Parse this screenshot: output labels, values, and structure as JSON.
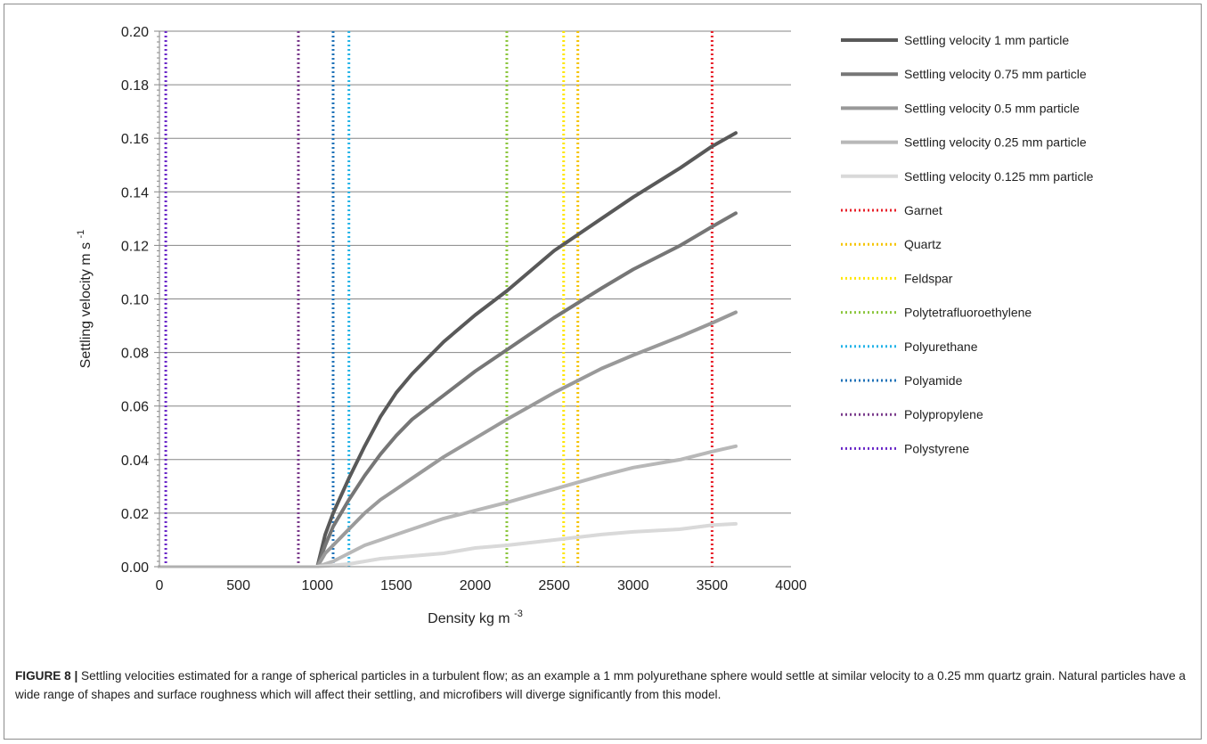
{
  "chart_data": {
    "type": "line",
    "xlabel": "Density kg m",
    "xlabel_sup": "-3",
    "ylabel": "Settling velocity m s",
    "ylabel_sup": "-1",
    "xlim": [
      0,
      4000
    ],
    "ylim": [
      0,
      0.2
    ],
    "x_ticks": [
      "0",
      "500",
      "1000",
      "1500",
      "2000",
      "2500",
      "3000",
      "3500",
      "4000"
    ],
    "y_ticks": [
      "0.00",
      "0.02",
      "0.04",
      "0.06",
      "0.08",
      "0.10",
      "0.12",
      "0.14",
      "0.16",
      "0.18",
      "0.20"
    ],
    "grid": "horizontal",
    "legend_position": "right",
    "series": [
      {
        "name": "Settling velocity 1 mm particle",
        "color": "#595959",
        "x": [
          0,
          1000,
          1050,
          1100,
          1200,
          1300,
          1400,
          1500,
          1600,
          1800,
          2000,
          2200,
          2500,
          2800,
          3000,
          3300,
          3500,
          3650
        ],
        "y": [
          0,
          0,
          0.012,
          0.02,
          0.033,
          0.045,
          0.056,
          0.065,
          0.072,
          0.084,
          0.094,
          0.103,
          0.118,
          0.13,
          0.138,
          0.149,
          0.157,
          0.162
        ]
      },
      {
        "name": "Settling velocity 0.75 mm particle",
        "color": "#767676",
        "x": [
          0,
          1000,
          1050,
          1100,
          1200,
          1300,
          1400,
          1500,
          1600,
          1800,
          2000,
          2200,
          2500,
          2800,
          3000,
          3300,
          3500,
          3650
        ],
        "y": [
          0,
          0,
          0.008,
          0.015,
          0.025,
          0.034,
          0.042,
          0.049,
          0.055,
          0.064,
          0.073,
          0.081,
          0.093,
          0.104,
          0.111,
          0.12,
          0.127,
          0.132
        ]
      },
      {
        "name": "Settling velocity 0.5 mm particle",
        "color": "#999999",
        "x": [
          0,
          1000,
          1050,
          1100,
          1200,
          1300,
          1400,
          1500,
          1600,
          1800,
          2000,
          2200,
          2500,
          2800,
          3000,
          3300,
          3500,
          3650
        ],
        "y": [
          0,
          0,
          0.005,
          0.008,
          0.014,
          0.02,
          0.025,
          0.029,
          0.033,
          0.041,
          0.048,
          0.055,
          0.065,
          0.074,
          0.079,
          0.086,
          0.091,
          0.095
        ]
      },
      {
        "name": "Settling velocity 0.25 mm particle",
        "color": "#b8b8b8",
        "x": [
          0,
          1000,
          1050,
          1100,
          1200,
          1300,
          1400,
          1500,
          1600,
          1800,
          2000,
          2200,
          2500,
          2800,
          3000,
          3300,
          3500,
          3650
        ],
        "y": [
          0,
          0,
          0.001,
          0.002,
          0.005,
          0.008,
          0.01,
          0.012,
          0.014,
          0.018,
          0.021,
          0.024,
          0.029,
          0.034,
          0.037,
          0.04,
          0.043,
          0.045
        ]
      },
      {
        "name": "Settling velocity 0.125 mm particle",
        "color": "#d9d9d9",
        "x": [
          0,
          1000,
          1100,
          1200,
          1400,
          1600,
          1800,
          2000,
          2200,
          2500,
          2800,
          3000,
          3300,
          3500,
          3650
        ],
        "y": [
          0,
          0,
          0.0005,
          0.001,
          0.003,
          0.004,
          0.005,
          0.007,
          0.008,
          0.01,
          0.012,
          0.013,
          0.014,
          0.0155,
          0.016
        ]
      }
    ],
    "reference_lines": [
      {
        "name": "Garnet",
        "x": 3500,
        "color": "#e8202a"
      },
      {
        "name": "Quartz",
        "x": 2650,
        "color": "#f5c400"
      },
      {
        "name": "Feldspar",
        "x": 2560,
        "color": "#ffe600"
      },
      {
        "name": "Polytetrafluoroethylene",
        "x": 2200,
        "color": "#8cc63e"
      },
      {
        "name": "Polyurethane",
        "x": 1200,
        "color": "#23b4e8"
      },
      {
        "name": "Polyamide",
        "x": 1100,
        "color": "#1f72b8"
      },
      {
        "name": "Polypropylene",
        "x": 880,
        "color": "#7a3b8c"
      },
      {
        "name": "Polystyrene",
        "x": 40,
        "color": "#6a28c8"
      }
    ]
  },
  "caption": {
    "label": "FIGURE 8 |",
    "text": " Settling velocities estimated for a range of spherical particles in a turbulent flow; as an example a 1 mm polyurethane sphere would settle at similar velocity to a 0.25 mm quartz grain. Natural particles have a wide range of shapes and surface roughness which will affect their settling, and microfibers will diverge significantly from this model."
  }
}
